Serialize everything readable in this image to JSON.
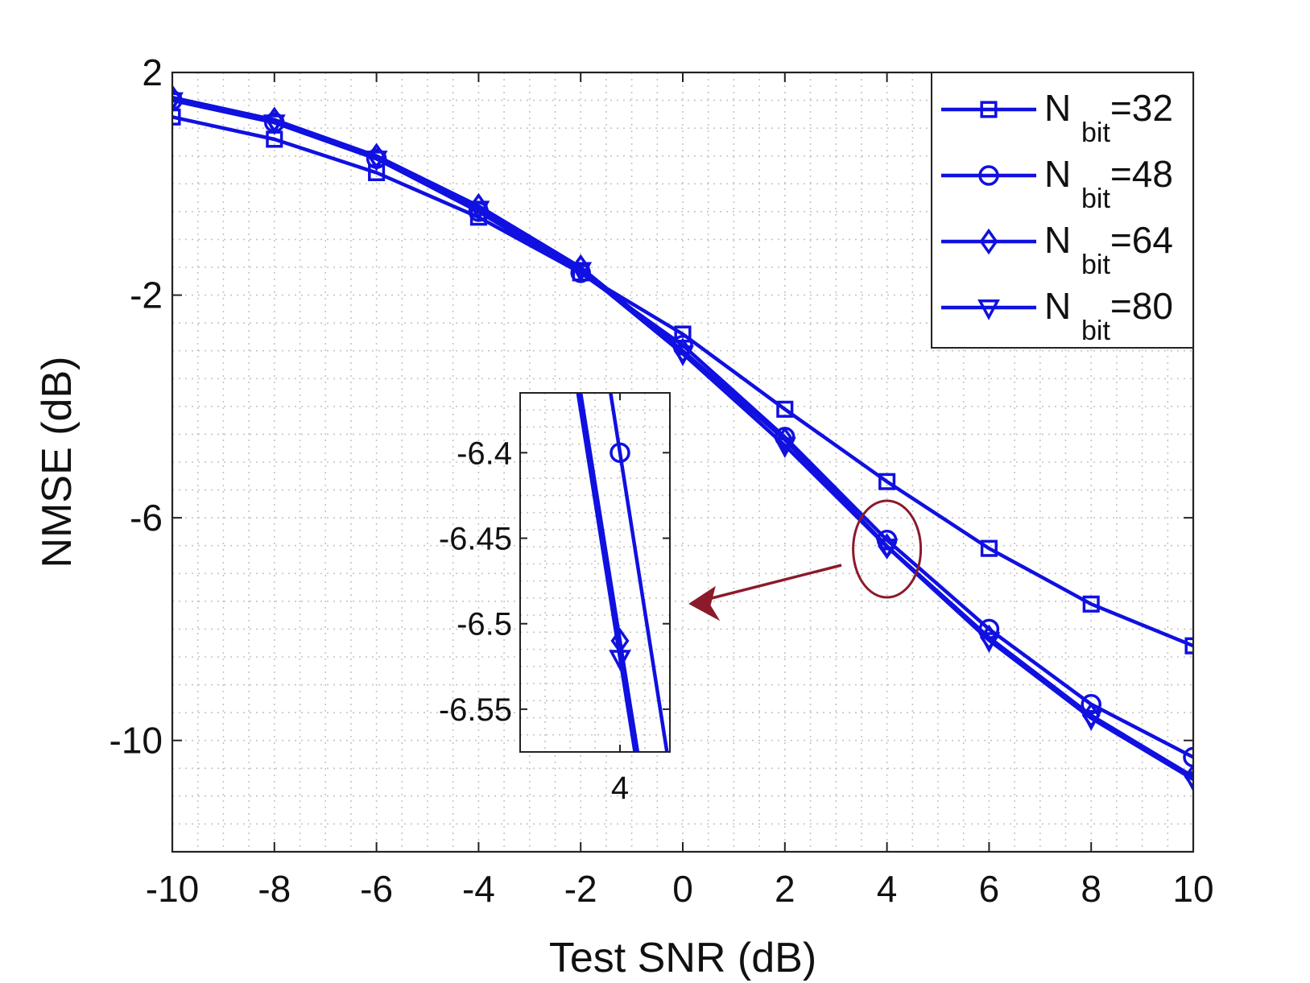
{
  "chart_data": {
    "type": "line",
    "xlabel": "Test SNR (dB)",
    "ylabel": "NMSE (dB)",
    "xlim": [
      -10,
      10
    ],
    "ylim": [
      -12,
      2
    ],
    "xticks": [
      -10,
      -8,
      -6,
      -4,
      -2,
      0,
      2,
      4,
      6,
      8,
      10
    ],
    "xtick_labels": [
      "-10",
      "-8",
      "-6",
      "-4",
      "-2",
      "0",
      "2",
      "4",
      "6",
      "8",
      "10"
    ],
    "yticks": [
      2,
      -2,
      -6,
      -10
    ],
    "ytick_labels": [
      "2",
      "-2",
      "-6",
      "-10"
    ],
    "grid": "minor dotted",
    "legend_position": "top-right",
    "line_color": "#1010e0",
    "annotation_color": "#8b1a2b",
    "x": [
      -10,
      -8,
      -6,
      -4,
      -2,
      0,
      2,
      4,
      6,
      8,
      10
    ],
    "series": [
      {
        "name": "N bit=32",
        "base": "N ",
        "sub": "bit",
        "suffix": "=32",
        "marker": "square",
        "values": [
          1.2,
          0.8,
          0.2,
          -0.6,
          -1.6,
          -2.7,
          -4.05,
          -5.35,
          -6.55,
          -7.55,
          -8.3
        ]
      },
      {
        "name": "N bit=48",
        "base": "N ",
        "sub": "bit",
        "suffix": "=48",
        "marker": "circle",
        "values": [
          1.5,
          1.1,
          0.45,
          -0.5,
          -1.6,
          -2.9,
          -4.55,
          -6.4,
          -8.0,
          -9.35,
          -10.3
        ]
      },
      {
        "name": "N bit=64",
        "base": "N ",
        "sub": "bit",
        "suffix": "=64",
        "marker": "diamond",
        "values": [
          1.55,
          1.15,
          0.5,
          -0.4,
          -1.5,
          -3.0,
          -4.6,
          -6.51,
          -8.15,
          -9.55,
          -10.65
        ]
      },
      {
        "name": "N bit=80",
        "base": "N ",
        "sub": "bit",
        "suffix": "=80",
        "marker": "triangle-down",
        "values": [
          1.5,
          1.1,
          0.45,
          -0.45,
          -1.55,
          -3.05,
          -4.7,
          -6.52,
          -8.2,
          -9.6,
          -10.7
        ]
      }
    ],
    "inset": {
      "description": "zoom near Test SNR = 4 dB",
      "xlim": [
        3.98,
        4.01
      ],
      "ylim": [
        -6.575,
        -6.365
      ],
      "xticks": [
        4
      ],
      "xtick_labels": [
        "4"
      ],
      "yticks": [
        -6.4,
        -6.45,
        -6.5,
        -6.55
      ],
      "ytick_labels": [
        "-6.4",
        "-6.45",
        "-6.5",
        "-6.55"
      ],
      "lines": [
        {
          "series": "N bit=48",
          "marker": "circle",
          "marker_at": [
            4,
            -6.4
          ],
          "slope": -18.6
        },
        {
          "series": "N bit=64",
          "marker": "diamond",
          "marker_at": [
            4,
            -6.51
          ],
          "slope": -18.4
        },
        {
          "series": "N bit=80",
          "marker": "triangle-down",
          "marker_at": [
            4,
            -6.52
          ],
          "slope": -18.4
        }
      ]
    }
  }
}
